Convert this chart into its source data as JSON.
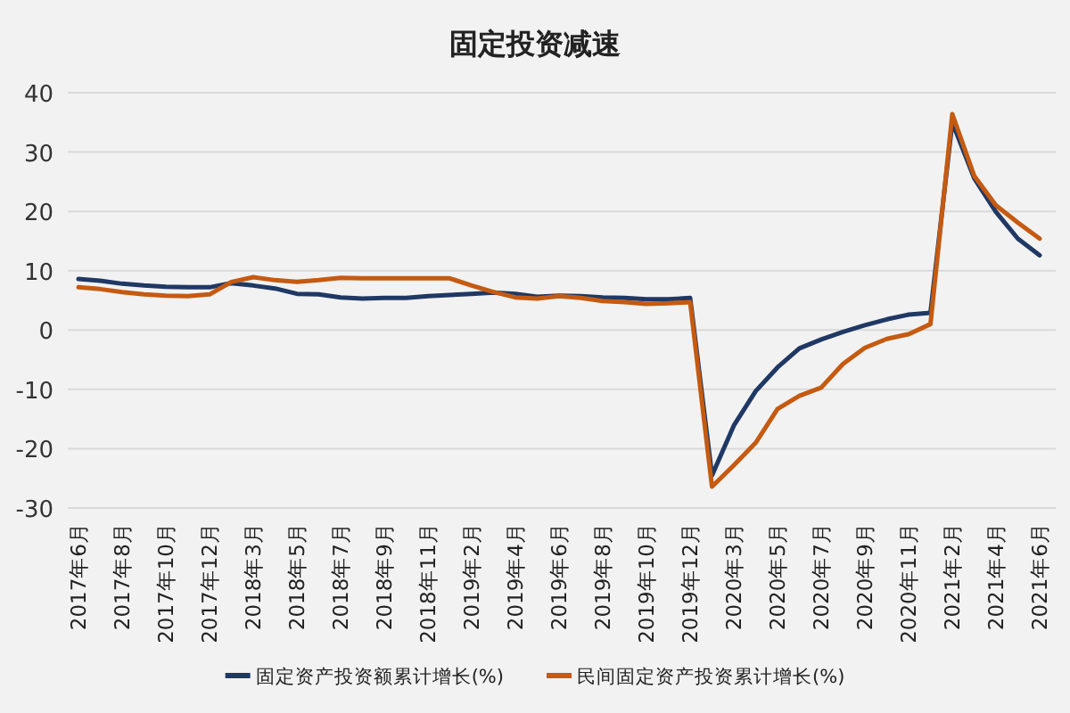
{
  "chart_data": {
    "type": "line",
    "title": "固定投资减速",
    "categories": [
      "2017年6月",
      null,
      "2017年8月",
      null,
      "2017年10月",
      null,
      "2017年12月",
      null,
      "2018年3月",
      null,
      "2018年5月",
      null,
      "2018年7月",
      null,
      "2018年9月",
      null,
      "2018年11月",
      null,
      "2019年2月",
      null,
      "2019年4月",
      null,
      "2019年6月",
      null,
      "2019年8月",
      null,
      "2019年10月",
      null,
      "2019年12月",
      null,
      "2020年3月",
      null,
      "2020年5月",
      null,
      "2020年7月",
      null,
      "2020年9月",
      null,
      "2020年11月",
      null,
      "2021年2月",
      null,
      "2021年4月",
      null,
      "2021年6月"
    ],
    "series": [
      {
        "name": "固定资产投资额累计增长(%)",
        "color": "#1f3864",
        "values": [
          8.6,
          8.3,
          7.8,
          7.5,
          7.3,
          7.2,
          7.2,
          7.9,
          7.5,
          7.0,
          6.1,
          6.0,
          5.5,
          5.3,
          5.4,
          5.4,
          5.7,
          5.9,
          6.1,
          6.3,
          6.1,
          5.6,
          5.8,
          5.7,
          5.5,
          5.4,
          5.2,
          5.2,
          5.4,
          -24.5,
          -16.1,
          -10.3,
          -6.3,
          -3.1,
          -1.6,
          -0.3,
          0.8,
          1.8,
          2.6,
          2.9,
          35.0,
          25.6,
          19.9,
          15.4,
          12.6
        ]
      },
      {
        "name": "民间固定资产投资累计增长(%)",
        "color": "#c55a11",
        "values": [
          7.2,
          6.9,
          6.4,
          6.0,
          5.8,
          5.7,
          6.0,
          8.1,
          8.9,
          8.4,
          8.1,
          8.4,
          8.8,
          8.7,
          8.7,
          8.7,
          8.7,
          8.7,
          7.5,
          6.4,
          5.5,
          5.3,
          5.7,
          5.4,
          4.9,
          4.7,
          4.4,
          4.5,
          4.7,
          -26.4,
          -22.8,
          -19.0,
          -13.3,
          -11.1,
          -9.7,
          -5.7,
          -3.0,
          -1.5,
          -0.7,
          1.0,
          36.4,
          26.0,
          21.0,
          18.1,
          15.4
        ]
      }
    ],
    "ylim": [
      -30,
      40
    ],
    "yticks": [
      -30,
      -20,
      -10,
      0,
      10,
      20,
      30,
      40
    ],
    "grid": "y",
    "legend": "bottom"
  }
}
